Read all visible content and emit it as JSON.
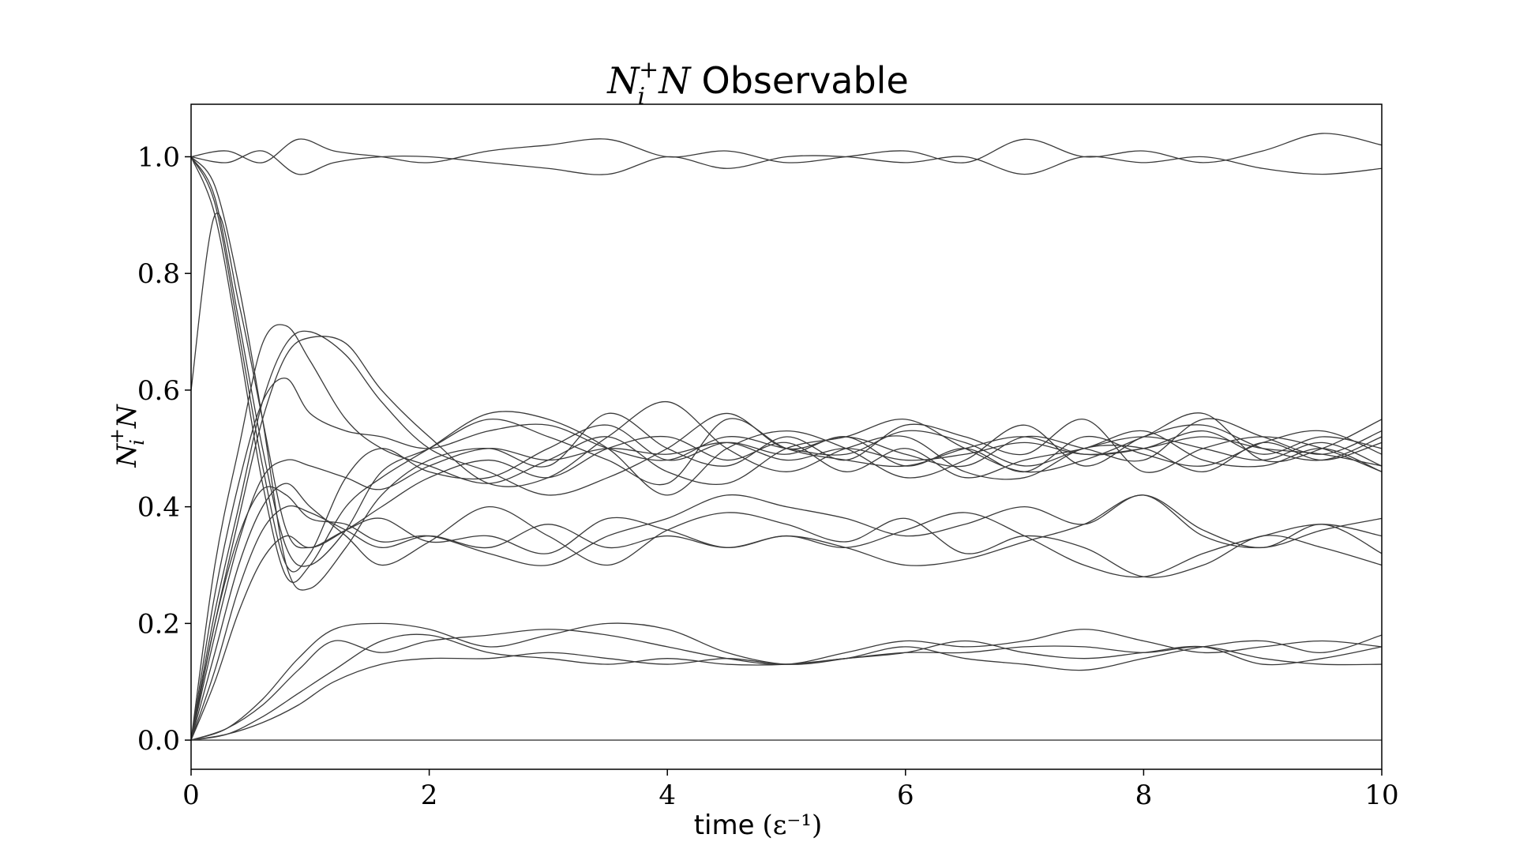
{
  "chart_data": {
    "type": "line",
    "title_math": "N_i^+N",
    "title_text": "Observable",
    "xlabel_text": "time",
    "xlabel_math": "(ε⁻¹)",
    "ylabel": "N_i^+N",
    "xlim": [
      0,
      10
    ],
    "ylim": [
      -0.05,
      1.09
    ],
    "xticks": [
      0,
      2,
      4,
      6,
      8,
      10
    ],
    "yticks": [
      0.0,
      0.2,
      0.4,
      0.6,
      0.8,
      1.0
    ],
    "xtick_labels": [
      "0",
      "2",
      "4",
      "6",
      "8",
      "10"
    ],
    "ytick_labels": [
      "0.0",
      "0.2",
      "0.4",
      "0.6",
      "0.8",
      "1.0"
    ],
    "grid": false,
    "line_color": "#3a3a3a",
    "series": [
      {
        "x": [
          0,
          0.3,
          0.6,
          0.9,
          1.2,
          1.6,
          2,
          2.5,
          3,
          3.5,
          4,
          4.5,
          5,
          5.5,
          6,
          6.5,
          7,
          7.5,
          8,
          8.5,
          9,
          9.5,
          10
        ],
        "y": [
          1.0,
          1.01,
          0.99,
          1.03,
          1.01,
          1.0,
          0.99,
          1.01,
          1.02,
          1.03,
          1.0,
          1.01,
          0.99,
          1.0,
          1.01,
          0.99,
          1.03,
          1.0,
          1.01,
          0.99,
          1.01,
          1.04,
          1.02
        ]
      },
      {
        "x": [
          0,
          0.3,
          0.6,
          0.9,
          1.2,
          1.6,
          2,
          2.5,
          3,
          3.5,
          4,
          4.5,
          5,
          5.5,
          6,
          6.5,
          7,
          7.5,
          8,
          8.5,
          9,
          9.5,
          10
        ],
        "y": [
          1.0,
          0.99,
          1.01,
          0.97,
          0.99,
          1.0,
          1.0,
          0.99,
          0.98,
          0.97,
          1.0,
          0.98,
          1.0,
          1.0,
          0.99,
          1.0,
          0.97,
          1.0,
          0.99,
          1.0,
          0.98,
          0.97,
          0.98
        ]
      },
      {
        "x": [
          0,
          0.2,
          0.4,
          0.6,
          0.8,
          1,
          1.3,
          1.6,
          2,
          2.5,
          3,
          3.5,
          4,
          4.5,
          5,
          5.5,
          6,
          6.5,
          7,
          7.5,
          8,
          8.5,
          9,
          9.5,
          10
        ],
        "y": [
          1.0,
          0.93,
          0.72,
          0.5,
          0.33,
          0.3,
          0.36,
          0.46,
          0.5,
          0.55,
          0.52,
          0.48,
          0.44,
          0.55,
          0.5,
          0.48,
          0.47,
          0.5,
          0.52,
          0.49,
          0.5,
          0.53,
          0.49,
          0.52,
          0.5
        ]
      },
      {
        "x": [
          0,
          0.2,
          0.4,
          0.6,
          0.8,
          1,
          1.3,
          1.6,
          2,
          2.5,
          3,
          3.5,
          4,
          4.5,
          5,
          5.5,
          6,
          6.5,
          7,
          7.5,
          8,
          8.5,
          9,
          9.5,
          10
        ],
        "y": [
          1.0,
          0.9,
          0.68,
          0.44,
          0.28,
          0.3,
          0.4,
          0.45,
          0.5,
          0.56,
          0.55,
          0.5,
          0.42,
          0.5,
          0.53,
          0.5,
          0.45,
          0.48,
          0.54,
          0.47,
          0.52,
          0.54,
          0.5,
          0.48,
          0.52
        ]
      },
      {
        "x": [
          0,
          0.2,
          0.4,
          0.6,
          0.8,
          1,
          1.3,
          1.6,
          2,
          2.5,
          3,
          3.5,
          4,
          4.5,
          5,
          5.5,
          6,
          6.5,
          7,
          7.5,
          8,
          8.5,
          9,
          9.5,
          10
        ],
        "y": [
          1.0,
          0.95,
          0.78,
          0.55,
          0.3,
          0.26,
          0.33,
          0.42,
          0.48,
          0.5,
          0.47,
          0.56,
          0.5,
          0.47,
          0.52,
          0.48,
          0.54,
          0.52,
          0.49,
          0.55,
          0.46,
          0.5,
          0.52,
          0.5,
          0.46
        ]
      },
      {
        "x": [
          0,
          0.2,
          0.4,
          0.6,
          0.8,
          1,
          1.3,
          1.6,
          2,
          2.5,
          3,
          3.5,
          4,
          4.5,
          5,
          5.5,
          6,
          6.5,
          7,
          7.5,
          8,
          8.5,
          9,
          9.5,
          10
        ],
        "y": [
          1.0,
          0.92,
          0.7,
          0.47,
          0.3,
          0.32,
          0.45,
          0.5,
          0.46,
          0.45,
          0.5,
          0.54,
          0.48,
          0.51,
          0.49,
          0.52,
          0.47,
          0.5,
          0.46,
          0.52,
          0.49,
          0.47,
          0.51,
          0.53,
          0.49
        ]
      },
      {
        "x": [
          0,
          0.2,
          0.4,
          0.6,
          0.8,
          1,
          1.3,
          1.6,
          2,
          2.5,
          3,
          3.5,
          4,
          4.5,
          5,
          5.5,
          6,
          6.5,
          7,
          7.5,
          8,
          8.5,
          9,
          9.5,
          10
        ],
        "y": [
          0.6,
          0.9,
          0.75,
          0.55,
          0.36,
          0.33,
          0.36,
          0.4,
          0.45,
          0.48,
          0.45,
          0.5,
          0.52,
          0.48,
          0.51,
          0.46,
          0.5,
          0.45,
          0.48,
          0.5,
          0.53,
          0.48,
          0.47,
          0.5,
          0.46
        ]
      },
      {
        "x": [
          0,
          0.2,
          0.4,
          0.6,
          0.8,
          1,
          1.3,
          1.6,
          2,
          2.5,
          3,
          3.5,
          4,
          4.5,
          5,
          5.5,
          6,
          6.5,
          7,
          7.5,
          8,
          8.5,
          9,
          9.5,
          10
        ],
        "y": [
          0.0,
          0.22,
          0.4,
          0.58,
          0.68,
          0.7,
          0.66,
          0.58,
          0.5,
          0.46,
          0.42,
          0.45,
          0.5,
          0.56,
          0.5,
          0.52,
          0.49,
          0.47,
          0.52,
          0.5,
          0.48,
          0.55,
          0.52,
          0.49,
          0.53
        ]
      },
      {
        "x": [
          0,
          0.2,
          0.4,
          0.6,
          0.8,
          1,
          1.3,
          1.6,
          2,
          2.5,
          3,
          3.5,
          4,
          4.5,
          5,
          5.5,
          6,
          6.5,
          7,
          7.5,
          8,
          8.5,
          9,
          9.5,
          10
        ],
        "y": [
          0.0,
          0.3,
          0.5,
          0.68,
          0.71,
          0.65,
          0.55,
          0.5,
          0.47,
          0.44,
          0.48,
          0.52,
          0.46,
          0.44,
          0.5,
          0.52,
          0.55,
          0.5,
          0.46,
          0.48,
          0.52,
          0.56,
          0.48,
          0.5,
          0.55
        ]
      },
      {
        "x": [
          0,
          0.2,
          0.4,
          0.6,
          0.8,
          1,
          1.3,
          1.6,
          2,
          2.5,
          3,
          3.5,
          4,
          4.5,
          5,
          5.5,
          6,
          6.5,
          7,
          7.5,
          8,
          8.5,
          9,
          9.5,
          10
        ],
        "y": [
          0.0,
          0.2,
          0.38,
          0.55,
          0.66,
          0.69,
          0.68,
          0.6,
          0.52,
          0.44,
          0.45,
          0.52,
          0.58,
          0.5,
          0.46,
          0.5,
          0.52,
          0.46,
          0.45,
          0.5,
          0.5,
          0.46,
          0.51,
          0.48,
          0.51
        ]
      },
      {
        "x": [
          0,
          0.2,
          0.4,
          0.6,
          0.8,
          1,
          1.3,
          1.6,
          2,
          2.5,
          3,
          3.5,
          4,
          4.5,
          5,
          5.5,
          6,
          6.5,
          7,
          7.5,
          8,
          8.5,
          9,
          9.5,
          10
        ],
        "y": [
          0.0,
          0.25,
          0.44,
          0.58,
          0.62,
          0.56,
          0.53,
          0.52,
          0.5,
          0.53,
          0.54,
          0.5,
          0.48,
          0.52,
          0.5,
          0.49,
          0.53,
          0.51,
          0.47,
          0.5,
          0.52,
          0.5,
          0.48,
          0.51,
          0.47
        ]
      },
      {
        "x": [
          0,
          0.2,
          0.4,
          0.6,
          0.8,
          1,
          1.3,
          1.6,
          2,
          2.5,
          3,
          3.5,
          4,
          4.5,
          5,
          5.5,
          6,
          6.5,
          7,
          7.5,
          8,
          8.5,
          9,
          9.5,
          10
        ],
        "y": [
          0.0,
          0.18,
          0.34,
          0.45,
          0.48,
          0.47,
          0.45,
          0.43,
          0.47,
          0.5,
          0.48,
          0.5,
          0.49,
          0.51,
          0.48,
          0.5,
          0.48,
          0.49,
          0.51,
          0.49,
          0.5,
          0.52,
          0.5,
          0.49,
          0.47
        ]
      },
      {
        "x": [
          0,
          0.2,
          0.4,
          0.6,
          0.8,
          1,
          1.3,
          1.6,
          2,
          2.5,
          3,
          3.5,
          4,
          4.5,
          5,
          5.5,
          6,
          6.5,
          7,
          7.5,
          8,
          8.5,
          9,
          9.5,
          10
        ],
        "y": [
          0.0,
          0.2,
          0.35,
          0.43,
          0.42,
          0.38,
          0.37,
          0.34,
          0.35,
          0.32,
          0.3,
          0.35,
          0.38,
          0.42,
          0.4,
          0.38,
          0.35,
          0.37,
          0.4,
          0.37,
          0.42,
          0.35,
          0.33,
          0.36,
          0.38
        ]
      },
      {
        "x": [
          0,
          0.2,
          0.4,
          0.6,
          0.8,
          1,
          1.3,
          1.6,
          2,
          2.5,
          3,
          3.5,
          4,
          4.5,
          5,
          5.5,
          6,
          6.5,
          7,
          7.5,
          8,
          8.5,
          9,
          9.5,
          10
        ],
        "y": [
          0.0,
          0.15,
          0.3,
          0.4,
          0.44,
          0.4,
          0.35,
          0.3,
          0.34,
          0.4,
          0.35,
          0.3,
          0.36,
          0.39,
          0.37,
          0.34,
          0.38,
          0.32,
          0.35,
          0.33,
          0.28,
          0.3,
          0.35,
          0.33,
          0.3
        ]
      },
      {
        "x": [
          0,
          0.2,
          0.4,
          0.6,
          0.8,
          1,
          1.3,
          1.6,
          2,
          2.5,
          3,
          3.5,
          4,
          4.5,
          5,
          5.5,
          6,
          6.5,
          7,
          7.5,
          8,
          8.5,
          9,
          9.5,
          10
        ],
        "y": [
          0.0,
          0.12,
          0.26,
          0.36,
          0.4,
          0.39,
          0.36,
          0.33,
          0.35,
          0.33,
          0.37,
          0.33,
          0.35,
          0.33,
          0.35,
          0.33,
          0.3,
          0.31,
          0.34,
          0.37,
          0.42,
          0.36,
          0.33,
          0.37,
          0.32
        ]
      },
      {
        "x": [
          0,
          0.2,
          0.4,
          0.6,
          0.8,
          1,
          1.3,
          1.6,
          2,
          2.5,
          3,
          3.5,
          4,
          4.5,
          5,
          5.5,
          6,
          6.5,
          7,
          7.5,
          8,
          8.5,
          9,
          9.5,
          10
        ],
        "y": [
          0.0,
          0.1,
          0.22,
          0.31,
          0.35,
          0.33,
          0.36,
          0.38,
          0.34,
          0.35,
          0.32,
          0.38,
          0.36,
          0.33,
          0.35,
          0.33,
          0.36,
          0.39,
          0.35,
          0.3,
          0.28,
          0.32,
          0.35,
          0.37,
          0.35
        ]
      },
      {
        "x": [
          0,
          0.3,
          0.6,
          0.9,
          1.2,
          1.6,
          2,
          2.5,
          3,
          3.5,
          4,
          4.5,
          5,
          5.5,
          6,
          6.5,
          7,
          7.5,
          8,
          8.5,
          9,
          9.5,
          10
        ],
        "y": [
          0.0,
          0.02,
          0.07,
          0.14,
          0.19,
          0.2,
          0.19,
          0.16,
          0.18,
          0.2,
          0.19,
          0.15,
          0.13,
          0.14,
          0.16,
          0.14,
          0.13,
          0.12,
          0.14,
          0.16,
          0.17,
          0.15,
          0.18
        ]
      },
      {
        "x": [
          0,
          0.3,
          0.6,
          0.9,
          1.2,
          1.6,
          2,
          2.5,
          3,
          3.5,
          4,
          4.5,
          5,
          5.5,
          6,
          6.5,
          7,
          7.5,
          8,
          8.5,
          9,
          9.5,
          10
        ],
        "y": [
          0.0,
          0.02,
          0.06,
          0.12,
          0.17,
          0.15,
          0.17,
          0.18,
          0.19,
          0.18,
          0.16,
          0.14,
          0.13,
          0.15,
          0.17,
          0.16,
          0.17,
          0.19,
          0.17,
          0.15,
          0.16,
          0.17,
          0.16
        ]
      },
      {
        "x": [
          0,
          0.3,
          0.6,
          0.9,
          1.2,
          1.6,
          2,
          2.5,
          3,
          3.5,
          4,
          4.5,
          5,
          5.5,
          6,
          6.5,
          7,
          7.5,
          8,
          8.5,
          9,
          9.5,
          10
        ],
        "y": [
          0.0,
          0.01,
          0.04,
          0.08,
          0.12,
          0.17,
          0.18,
          0.15,
          0.14,
          0.13,
          0.14,
          0.13,
          0.13,
          0.14,
          0.15,
          0.17,
          0.15,
          0.14,
          0.15,
          0.16,
          0.13,
          0.14,
          0.16
        ]
      },
      {
        "x": [
          0,
          0.3,
          0.6,
          0.9,
          1.2,
          1.6,
          2,
          2.5,
          3,
          3.5,
          4,
          4.5,
          5,
          5.5,
          6,
          6.5,
          7,
          7.5,
          8,
          8.5,
          9,
          9.5,
          10
        ],
        "y": [
          0.0,
          0.01,
          0.03,
          0.06,
          0.1,
          0.13,
          0.14,
          0.14,
          0.15,
          0.14,
          0.13,
          0.14,
          0.13,
          0.14,
          0.15,
          0.15,
          0.16,
          0.16,
          0.15,
          0.16,
          0.14,
          0.13,
          0.13
        ]
      },
      {
        "x": [
          0,
          10
        ],
        "y": [
          0.0,
          0.0
        ]
      }
    ]
  }
}
